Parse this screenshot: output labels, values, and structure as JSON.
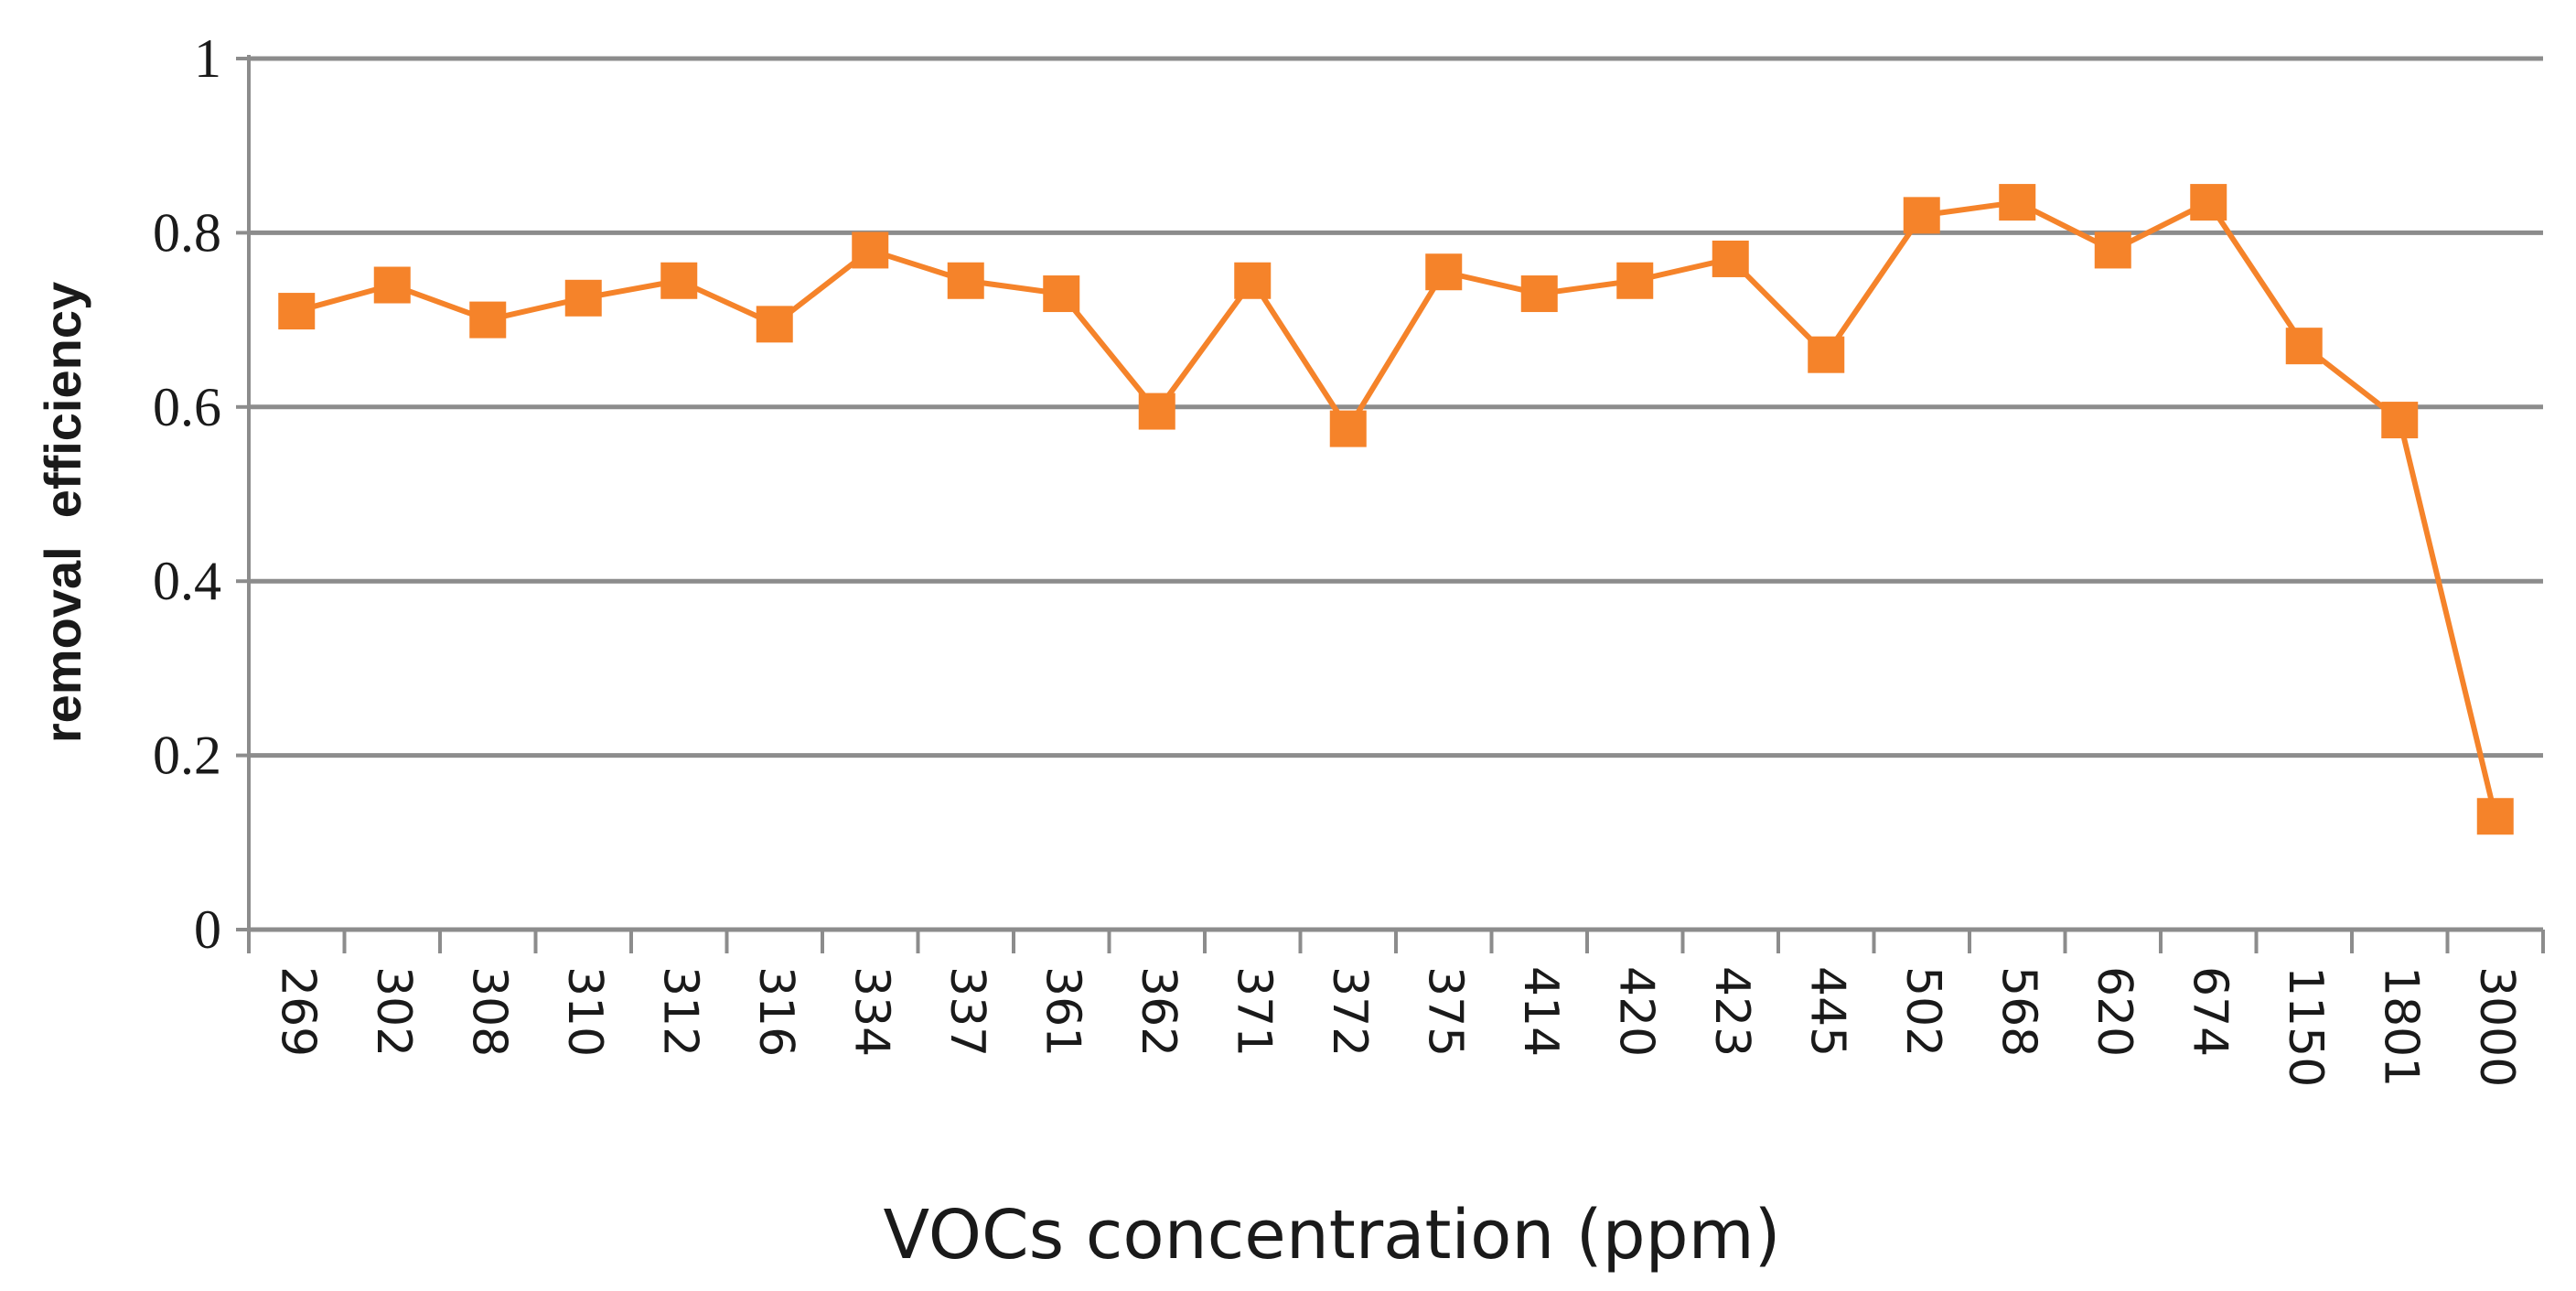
{
  "chart_data": {
    "type": "line",
    "title": "",
    "xlabel": "VOCs concentration (ppm)",
    "ylabel": "removal  efficiency",
    "ylim": [
      0,
      1
    ],
    "yticks": [
      "0",
      "0.2",
      "0.4",
      "0.6",
      "0.8",
      "1"
    ],
    "categories": [
      "269",
      "302",
      "308",
      "310",
      "312",
      "316",
      "334",
      "337",
      "361",
      "362",
      "371",
      "372",
      "375",
      "414",
      "420",
      "423",
      "445",
      "502",
      "568",
      "620",
      "674",
      "1150",
      "1801",
      "3000"
    ],
    "series": [
      {
        "name": "removal efficiency",
        "color": "#f5832a",
        "marker": "square",
        "values": [
          0.71,
          0.74,
          0.7,
          0.725,
          0.745,
          0.695,
          0.78,
          0.745,
          0.73,
          0.595,
          0.745,
          0.575,
          0.755,
          0.73,
          0.745,
          0.77,
          0.66,
          0.82,
          0.835,
          0.78,
          0.835,
          0.67,
          0.585,
          0.13
        ]
      }
    ],
    "grid": true,
    "legend": "none"
  }
}
